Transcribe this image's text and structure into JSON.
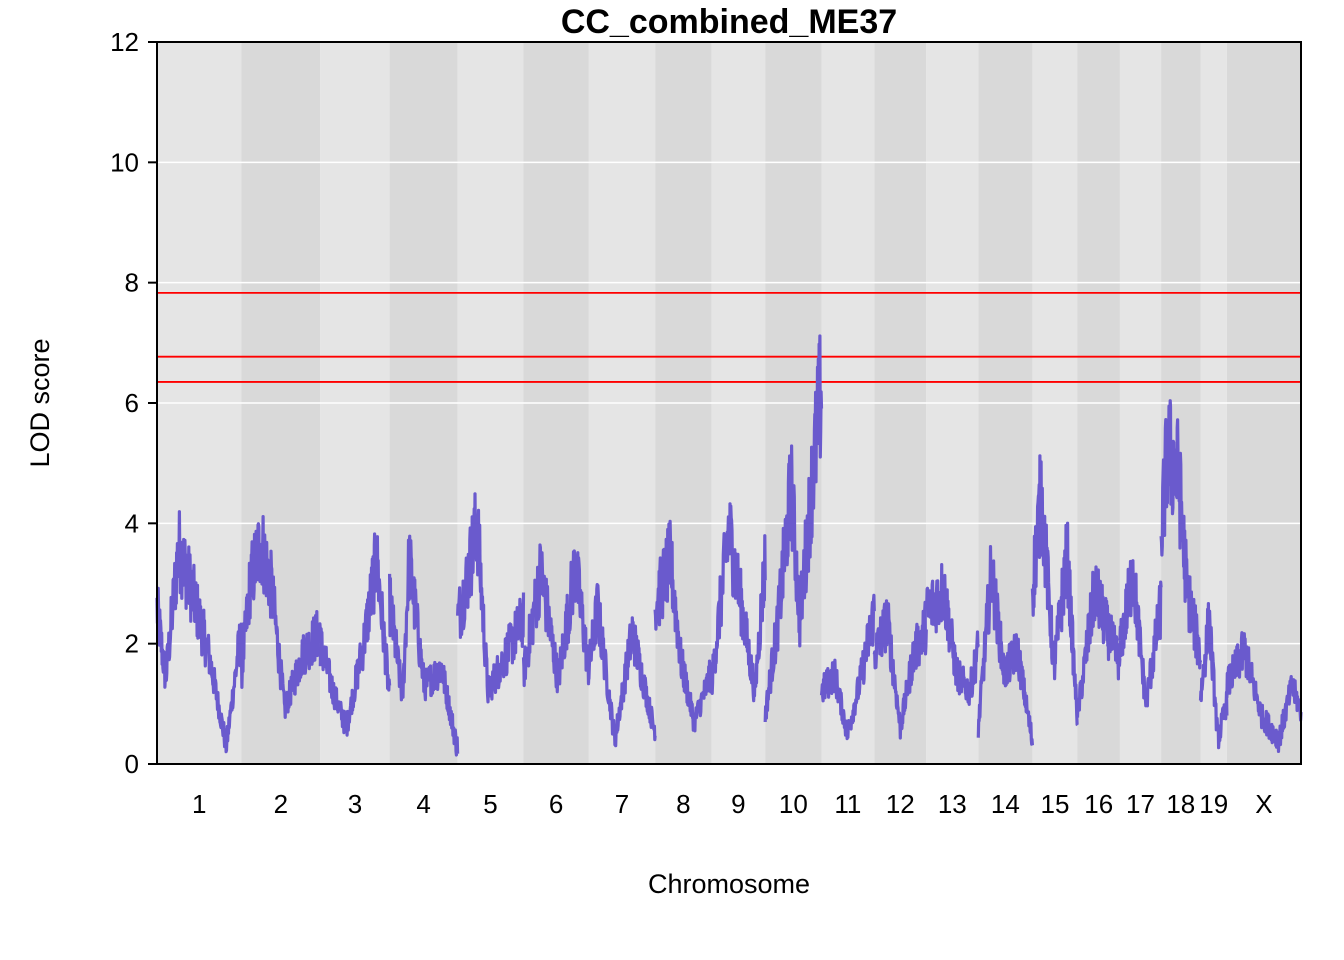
{
  "chart_data": {
    "type": "line",
    "title": "CC_combined_ME37",
    "xlabel": "Chromosome",
    "ylabel": "LOD score",
    "ylim": [
      0,
      12
    ],
    "yticks": [
      0,
      2,
      4,
      6,
      8,
      10,
      12
    ],
    "grid": "horizontal",
    "colors": {
      "line": "#6a5acd",
      "threshold": "#ff0000",
      "band_light": "#e5e5e5",
      "band_dark": "#d9d9d9",
      "grid": "#ffffff"
    },
    "thresholds": [
      7.83,
      6.77,
      6.35
    ],
    "chromosomes": [
      {
        "label": "1",
        "start": 0,
        "end": 195,
        "peaks": [
          [
            0,
            2.6
          ],
          [
            20,
            1.4
          ],
          [
            50,
            3.6
          ],
          [
            80,
            2.9
          ],
          [
            120,
            1.8
          ],
          [
            160,
            0.3
          ],
          [
            190,
            2.0
          ]
        ]
      },
      {
        "label": "2",
        "start": 195,
        "end": 377,
        "peaks": [
          [
            0,
            1.5
          ],
          [
            20,
            3.0
          ],
          [
            45,
            3.7
          ],
          [
            70,
            2.9
          ],
          [
            100,
            0.9
          ],
          [
            140,
            1.8
          ],
          [
            180,
            2.2
          ]
        ]
      },
      {
        "label": "3",
        "start": 377,
        "end": 537,
        "peaks": [
          [
            0,
            2.0
          ],
          [
            30,
            1.2
          ],
          [
            60,
            0.6
          ],
          [
            100,
            2.0
          ],
          [
            130,
            3.4
          ],
          [
            160,
            1.1
          ]
        ]
      },
      {
        "label": "4",
        "start": 537,
        "end": 694,
        "peaks": [
          [
            0,
            2.7
          ],
          [
            30,
            1.1
          ],
          [
            45,
            3.4
          ],
          [
            80,
            1.3
          ],
          [
            120,
            1.6
          ],
          [
            155,
            0.3
          ]
        ]
      },
      {
        "label": "5",
        "start": 694,
        "end": 846,
        "peaks": [
          [
            0,
            2.4
          ],
          [
            20,
            3.0
          ],
          [
            45,
            4.0
          ],
          [
            70,
            1.2
          ],
          [
            110,
            1.8
          ],
          [
            150,
            2.4
          ]
        ]
      },
      {
        "label": "6",
        "start": 846,
        "end": 997,
        "peaks": [
          [
            0,
            1.5
          ],
          [
            40,
            3.2
          ],
          [
            80,
            1.4
          ],
          [
            120,
            3.3
          ],
          [
            150,
            1.6
          ]
        ]
      },
      {
        "label": "7",
        "start": 997,
        "end": 1150,
        "peaks": [
          [
            0,
            1.6
          ],
          [
            20,
            2.6
          ],
          [
            60,
            0.4
          ],
          [
            100,
            2.2
          ],
          [
            150,
            0.6
          ]
        ]
      },
      {
        "label": "8",
        "start": 1150,
        "end": 1280,
        "peaks": [
          [
            0,
            2.6
          ],
          [
            35,
            3.4
          ],
          [
            60,
            1.7
          ],
          [
            90,
            0.7
          ],
          [
            129,
            1.5
          ]
        ]
      },
      {
        "label": "9",
        "start": 1280,
        "end": 1404,
        "peaks": [
          [
            0,
            1.3
          ],
          [
            40,
            3.9
          ],
          [
            70,
            2.6
          ],
          [
            100,
            1.2
          ],
          [
            123,
            3.3
          ]
        ]
      },
      {
        "label": "10",
        "start": 1404,
        "end": 1534,
        "peaks": [
          [
            0,
            0.8
          ],
          [
            30,
            2.4
          ],
          [
            60,
            4.6
          ],
          [
            80,
            2.4
          ],
          [
            110,
            4.8
          ],
          [
            129,
            6.2
          ]
        ]
      },
      {
        "label": "11",
        "start": 1534,
        "end": 1656,
        "peaks": [
          [
            0,
            1.2
          ],
          [
            30,
            1.5
          ],
          [
            60,
            0.5
          ],
          [
            90,
            1.4
          ],
          [
            121,
            2.5
          ]
        ]
      },
      {
        "label": "12",
        "start": 1656,
        "end": 1776,
        "peaks": [
          [
            0,
            1.8
          ],
          [
            30,
            2.4
          ],
          [
            60,
            0.6
          ],
          [
            90,
            1.8
          ],
          [
            119,
            2.3
          ]
        ]
      },
      {
        "label": "13",
        "start": 1776,
        "end": 1896,
        "peaks": [
          [
            0,
            2.5
          ],
          [
            40,
            2.9
          ],
          [
            70,
            1.5
          ],
          [
            100,
            1.2
          ],
          [
            119,
            1.9
          ]
        ]
      },
      {
        "label": "14",
        "start": 1896,
        "end": 2021,
        "peaks": [
          [
            0,
            0.6
          ],
          [
            30,
            3.2
          ],
          [
            60,
            1.5
          ],
          [
            90,
            1.9
          ],
          [
            124,
            0.4
          ]
        ]
      },
      {
        "label": "15",
        "start": 2021,
        "end": 2125,
        "peaks": [
          [
            0,
            2.9
          ],
          [
            20,
            4.5
          ],
          [
            50,
            1.6
          ],
          [
            80,
            3.5
          ],
          [
            103,
            0.8
          ]
        ]
      },
      {
        "label": "16",
        "start": 2125,
        "end": 2223,
        "peaks": [
          [
            0,
            0.8
          ],
          [
            40,
            2.9
          ],
          [
            70,
            2.2
          ],
          [
            97,
            1.7
          ]
        ]
      },
      {
        "label": "17",
        "start": 2223,
        "end": 2318,
        "peaks": [
          [
            0,
            1.9
          ],
          [
            30,
            3.2
          ],
          [
            60,
            1.0
          ],
          [
            94,
            2.6
          ]
        ]
      },
      {
        "label": "18",
        "start": 2318,
        "end": 2409,
        "peaks": [
          [
            0,
            3.8
          ],
          [
            15,
            5.2
          ],
          [
            40,
            4.8
          ],
          [
            60,
            2.9
          ],
          [
            90,
            1.8
          ]
        ]
      },
      {
        "label": "19",
        "start": 2409,
        "end": 2470,
        "peaks": [
          [
            0,
            1.1
          ],
          [
            20,
            2.4
          ],
          [
            40,
            0.4
          ],
          [
            60,
            1.0
          ]
        ]
      },
      {
        "label": "X",
        "start": 2470,
        "end": 2641,
        "peaks": [
          [
            0,
            1.3
          ],
          [
            40,
            1.9
          ],
          [
            80,
            0.8
          ],
          [
            120,
            0.4
          ],
          [
            150,
            1.3
          ],
          [
            170,
            0.9
          ]
        ]
      }
    ]
  }
}
